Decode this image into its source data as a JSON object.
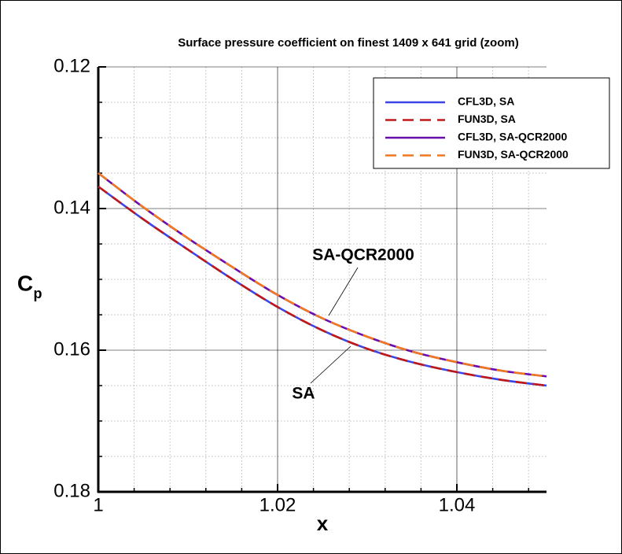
{
  "chart_data": {
    "type": "line",
    "title": "Surface pressure coefficient on finest 1409 x 641 grid (zoom)",
    "xlabel": "x",
    "ylabel": "C",
    "ylabel_sub": "p",
    "x": [
      1.0,
      1.005,
      1.01,
      1.015,
      1.02,
      1.025,
      1.03,
      1.035,
      1.04,
      1.045,
      1.05
    ],
    "series": [
      {
        "name": "CFL3D, SA",
        "color": "#3c46e6",
        "dashed": false,
        "values": [
          0.1369,
          0.1415,
          0.1458,
          0.15,
          0.1539,
          0.1572,
          0.1598,
          0.1617,
          0.1631,
          0.1642,
          0.165
        ]
      },
      {
        "name": "FUN3D, SA",
        "color": "#c01818",
        "dashed": true,
        "values": [
          0.1369,
          0.1415,
          0.1458,
          0.15,
          0.1539,
          0.1572,
          0.1598,
          0.1617,
          0.1631,
          0.1642,
          0.165
        ]
      },
      {
        "name": "CFL3D, SA-QCR2000",
        "color": "#6a0dad",
        "dashed": false,
        "values": [
          0.135,
          0.1398,
          0.1442,
          0.1483,
          0.1522,
          0.1555,
          0.1581,
          0.1602,
          0.1617,
          0.1629,
          0.1637
        ]
      },
      {
        "name": "FUN3D, SA-QCR2000",
        "color": "#f07820",
        "dashed": true,
        "values": [
          0.135,
          0.1398,
          0.1442,
          0.1483,
          0.1522,
          0.1555,
          0.1581,
          0.1602,
          0.1617,
          0.1629,
          0.1637
        ]
      }
    ],
    "xlim": [
      1,
      1.05
    ],
    "xticks": [
      1,
      1.02,
      1.04
    ],
    "x_minor_ticks": [
      1.004,
      1.008,
      1.012,
      1.016,
      1.024,
      1.028,
      1.032,
      1.036,
      1.044,
      1.048
    ],
    "ylim": [
      0.18,
      0.12
    ],
    "yticks": [
      0.12,
      0.14,
      0.16,
      0.18
    ],
    "y_minor_ticks": [
      0.125,
      0.13,
      0.135,
      0.145,
      0.15,
      0.155,
      0.165,
      0.17,
      0.175
    ],
    "grid": true,
    "legend": "top-right",
    "annotations": [
      "SA-QCR2000",
      "SA"
    ]
  }
}
